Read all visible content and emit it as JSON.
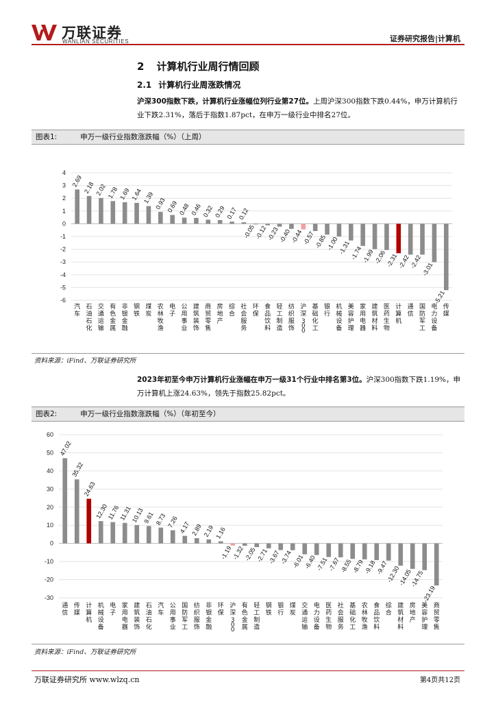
{
  "header": {
    "logo_cn": "万联证券",
    "logo_en": "WANLIAN SECURITIES",
    "report_type": "证券研究报告|计算机"
  },
  "section": {
    "number": "2",
    "title": "计算机行业周行情回顾"
  },
  "subsection": {
    "number": "2.1",
    "title": "计算机行业周涨跌情况"
  },
  "para1": {
    "bold": "沪深300指数下跌，计算机行业涨幅位列行业第27位。",
    "text": "上周沪深300指数下跌0.44%，申万计算机行业下跌2.31%，落后于指数1.87pct，在申万一级行业中排名27位。"
  },
  "para2": {
    "bold": "2023年初至今申万计算机行业涨幅在申万一级31个行业中排名第3位。",
    "text": "沪深300指数下跌1.19%，申万计算机上涨24.63%，领先于指数25.82pct。"
  },
  "figure1": {
    "label": "图表1:",
    "title": "申万一级行业指数涨跌幅（%）（上周）",
    "source": "资料来源：iFind、万联证券研究所"
  },
  "figure2": {
    "label": "图表2:",
    "title": "申万一级行业指数涨跌幅（%）（年初至今）",
    "source": "资料来源：iFind、万联证券研究所"
  },
  "colors": {
    "bar": "#8c8c8c",
    "highlight": "#b00000",
    "index": "#f0a0a0",
    "brand": "#b31b1b"
  },
  "chart_data": [
    {
      "type": "bar",
      "title": "申万一级行业指数涨跌幅（%）（上周）",
      "ylim": [
        -6,
        4
      ],
      "yticks": [
        -6,
        -5,
        -4,
        -3,
        -2,
        -1,
        0,
        1,
        2,
        3,
        4
      ],
      "highlight": "计算机",
      "index_name": "沪深300",
      "categories": [
        "汽车",
        "石油石化",
        "交通运输",
        "有色金属",
        "非银金融",
        "钢铁",
        "煤炭",
        "农林牧渔",
        "电子",
        "公用事业",
        "建筑装饰",
        "商贸零售",
        "房地产",
        "综合",
        "社会服务",
        "环保",
        "食品饮料",
        "轻工制造",
        "纺织服饰",
        "沪深300",
        "基础化工",
        "银行",
        "机械设备",
        "美容护理",
        "家用电器",
        "建筑材料",
        "医药生物",
        "计算机",
        "通信",
        "国防军工",
        "电力设备",
        "传媒"
      ],
      "values": [
        2.69,
        2.18,
        2.02,
        1.78,
        1.69,
        1.64,
        1.39,
        0.93,
        0.69,
        0.48,
        0.46,
        0.32,
        0.29,
        0.17,
        0.12,
        -0.05,
        -0.12,
        -0.23,
        -0.4,
        -0.44,
        -0.57,
        -0.85,
        -1.0,
        -1.31,
        -1.74,
        -1.99,
        -2.06,
        -2.31,
        -2.42,
        -2.42,
        -3.01,
        -5.21
      ]
    },
    {
      "type": "bar",
      "title": "申万一级行业指数涨跌幅（%）（年初至今）",
      "ylim": [
        -30,
        60
      ],
      "yticks": [
        -30,
        -20,
        -10,
        0,
        10,
        20,
        30,
        40,
        50,
        60
      ],
      "highlight": "计算机",
      "index_name": "沪深300",
      "categories": [
        "通信",
        "传媒",
        "计算机",
        "机械设备",
        "电子",
        "家用电器",
        "建筑装饰",
        "石油石化",
        "汽车",
        "公用事业",
        "国防军工",
        "纺织服饰",
        "非银金融",
        "环保",
        "沪深300",
        "有色金属",
        "轻工制造",
        "钢铁",
        "银行",
        "煤炭",
        "交通运输",
        "电力设备",
        "医药生物",
        "社会服务",
        "基础化工",
        "农林牧渔",
        "食品饮料",
        "综合",
        "建筑材料",
        "房地产",
        "美容护理",
        "商贸零售"
      ],
      "values": [
        47.02,
        35.32,
        24.63,
        12.3,
        11.76,
        11.31,
        10.13,
        9.61,
        8.73,
        7.26,
        4.17,
        2.89,
        2.19,
        1.16,
        -1.19,
        -1.32,
        -2.05,
        -2.71,
        -3.67,
        -3.74,
        -6.01,
        -6.4,
        -7.51,
        -7.67,
        -8.55,
        -8.79,
        -9.18,
        -9.47,
        -12.3,
        -14.05,
        -14.75,
        -23.19
      ]
    }
  ],
  "footer": {
    "left": "万联证券研究所 www.wlzq.cn",
    "right": "第4页共12页"
  }
}
